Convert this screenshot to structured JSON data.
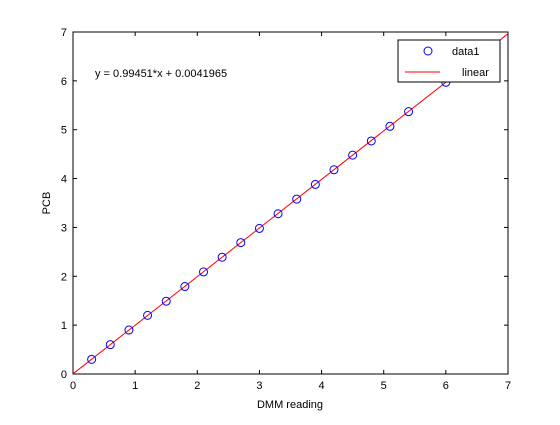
{
  "chart_data": {
    "type": "scatter",
    "title": "",
    "xlabel": "DMM reading",
    "ylabel": "PCB",
    "xlim": [
      0,
      7
    ],
    "ylim": [
      0,
      7
    ],
    "x_ticks": [
      0,
      1,
      2,
      3,
      4,
      5,
      6,
      7
    ],
    "y_ticks": [
      0,
      1,
      2,
      3,
      4,
      5,
      6,
      7
    ],
    "x_tick_labels": [
      "0",
      "1",
      "2",
      "3",
      "4",
      "5",
      "6",
      "7"
    ],
    "y_tick_labels": [
      "0",
      "1",
      "2",
      "3",
      "4",
      "5",
      "6",
      "7"
    ],
    "grid": false,
    "legend_position": "top-right",
    "annotation": "y = 0.99451*x + 0.0041965",
    "series": [
      {
        "name": "data1",
        "kind": "markers",
        "marker": "circle",
        "color": "#0000ff",
        "x": [
          0.3,
          0.6,
          0.9,
          1.2,
          1.5,
          1.8,
          2.1,
          2.4,
          2.7,
          3.0,
          3.3,
          3.6,
          3.9,
          4.2,
          4.5,
          4.8,
          5.1,
          5.4,
          6.0
        ],
        "y": [
          0.3,
          0.6,
          0.9,
          1.2,
          1.49,
          1.79,
          2.09,
          2.39,
          2.69,
          2.98,
          3.28,
          3.58,
          3.88,
          4.18,
          4.48,
          4.77,
          5.07,
          5.37,
          5.97
        ]
      },
      {
        "name": "linear",
        "kind": "line",
        "color": "#ff0000",
        "slope": 0.99451,
        "intercept": 0.0041965
      }
    ]
  }
}
